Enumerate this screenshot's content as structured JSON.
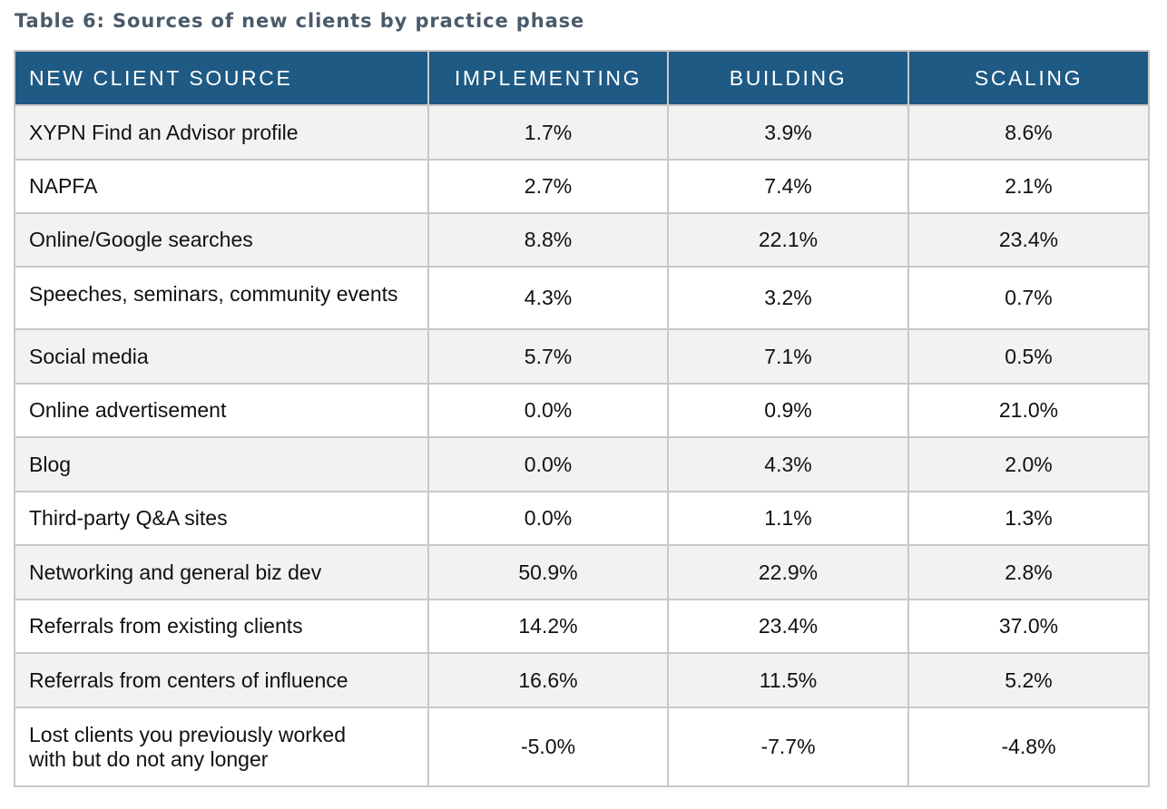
{
  "title": "Table 6: Sources of new clients by practice phase",
  "headers": [
    "NEW CLIENT SOURCE",
    "IMPLEMENTING",
    "BUILDING",
    "SCALING"
  ],
  "rows": [
    {
      "source": "XYPN Find an Advisor profile",
      "implementing": "1.7%",
      "building": "3.9%",
      "scaling": "8.6%"
    },
    {
      "source": "NAPFA",
      "implementing": "2.7%",
      "building": "7.4%",
      "scaling": "2.1%"
    },
    {
      "source": "Online/Google searches",
      "implementing": "8.8%",
      "building": "22.1%",
      "scaling": "23.4%"
    },
    {
      "source": "Speeches, seminars, community events",
      "implementing": "4.3%",
      "building": "3.2%",
      "scaling": "0.7%"
    },
    {
      "source": "Social media",
      "implementing": "5.7%",
      "building": "7.1%",
      "scaling": "0.5%"
    },
    {
      "source": "Online advertisement",
      "implementing": "0.0%",
      "building": "0.9%",
      "scaling": "21.0%"
    },
    {
      "source": "Blog",
      "implementing": "0.0%",
      "building": "4.3%",
      "scaling": "2.0%"
    },
    {
      "source": "Third-party Q&A sites",
      "implementing": "0.0%",
      "building": "1.1%",
      "scaling": "1.3%"
    },
    {
      "source": "Networking and general biz dev",
      "implementing": "50.9%",
      "building": "22.9%",
      "scaling": "2.8%"
    },
    {
      "source": "Referrals from existing clients",
      "implementing": "14.2%",
      "building": "23.4%",
      "scaling": "37.0%"
    },
    {
      "source": "Referrals from centers of influence",
      "implementing": "16.6%",
      "building": "11.5%",
      "scaling": "5.2%"
    },
    {
      "source": [
        "Lost clients you previously worked",
        "with but do not any longer"
      ],
      "implementing": "-5.0%",
      "building": "-7.7%",
      "scaling": "-4.8%"
    }
  ],
  "colors": {
    "header_background": "#1f5a84",
    "header_text": "#ffffff",
    "stripe": "#f2f2f2",
    "border": "#c8c8c8",
    "title_text": "#4a5a6a"
  }
}
